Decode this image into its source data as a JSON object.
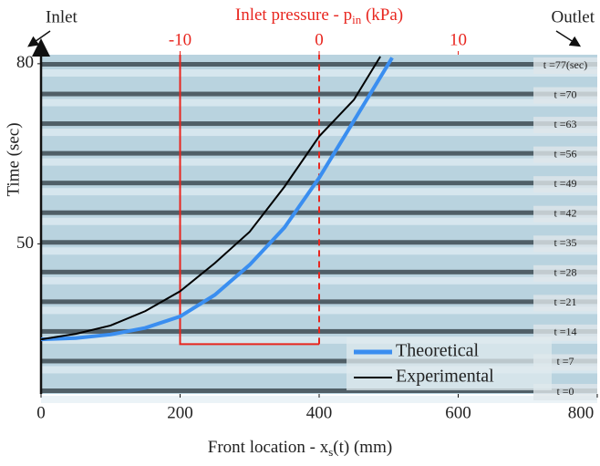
{
  "chart_data": {
    "type": "line",
    "title": "Inlet pressure - p",
    "title_sub": "in",
    "title_end": " (kPa)",
    "xlabel": [
      "Front location - x",
      "s",
      "(t) (mm)"
    ],
    "ylabel": "Time (sec)",
    "corner_left": "Inlet",
    "corner_right": "Outlet",
    "xlim": [
      0,
      800
    ],
    "xticks": [
      0,
      200,
      400,
      600,
      800
    ],
    "x2lim": [
      -20,
      20
    ],
    "x2ticks": [
      -10,
      0,
      10
    ],
    "x2color": "#e8261f",
    "ylim": [
      25,
      81.5
    ],
    "yticks": [
      50,
      80
    ],
    "annotations": [
      "t =77(sec)",
      "t =70",
      "t =63",
      "t =56",
      "t =49",
      "t =42",
      "t =35",
      "t =28",
      "t =21",
      "t =14",
      "t =7",
      "t =0"
    ],
    "series": [
      {
        "name": "Theoretical",
        "color": "#3a8ef0",
        "x": [
          0,
          50,
          100,
          150,
          200,
          250,
          300,
          350,
          400,
          450,
          505
        ],
        "values": [
          34.1,
          34.3,
          34.9,
          36,
          37.9,
          41.5,
          46.5,
          52.7,
          61,
          70.5,
          81
        ]
      },
      {
        "name": "Experimental",
        "color": "#000000",
        "x": [
          0,
          50,
          100,
          150,
          200,
          250,
          300,
          350,
          400,
          450,
          488
        ],
        "values": [
          34.1,
          35,
          36.4,
          38.8,
          42.1,
          46.8,
          52,
          59.5,
          67.9,
          74,
          81.2
        ]
      }
    ],
    "pressure_solid": {
      "x": [
        -10,
        -10,
        0
      ],
      "values": [
        81.5,
        33.3,
        33.3
      ]
    },
    "pressure_dashed": {
      "x": [
        0,
        0
      ],
      "values": [
        33.3,
        81.5
      ]
    },
    "legend": "lower right"
  }
}
